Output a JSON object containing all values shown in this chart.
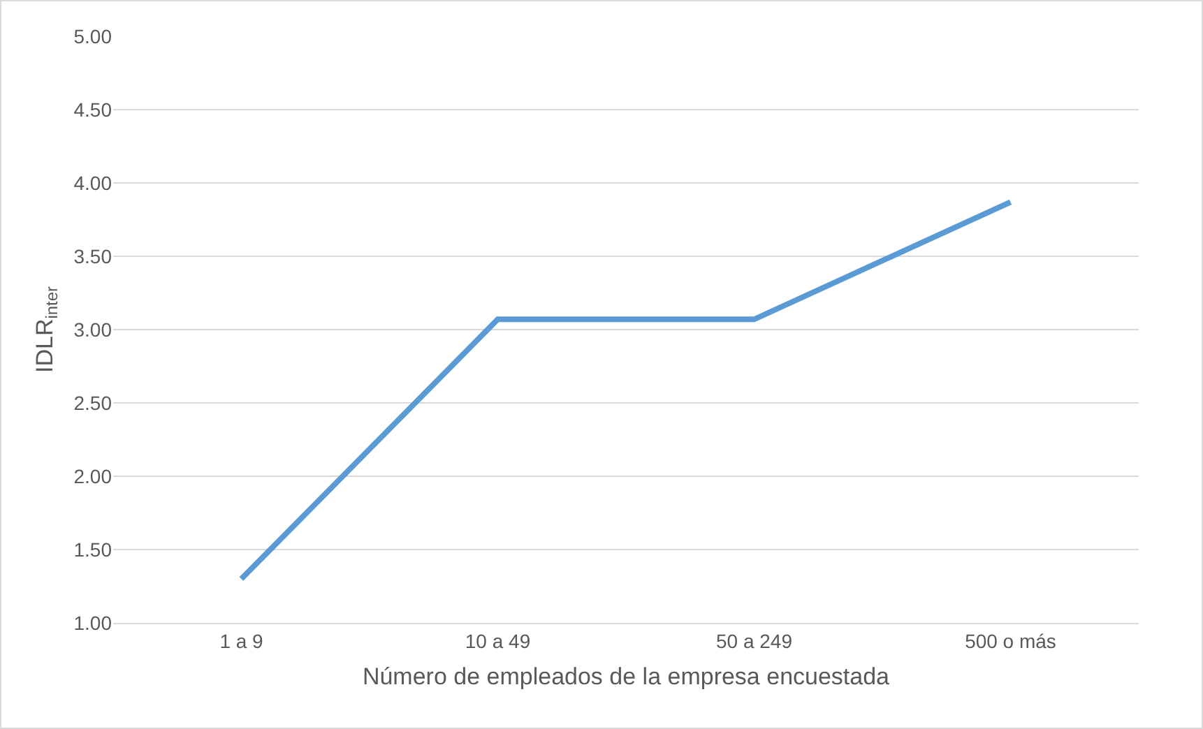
{
  "chart_data": {
    "type": "line",
    "xlabel": "Número de empleados de la empresa encuestada",
    "ylabel": "IDLR$_{inter}$",
    "categories": [
      "1 a 9",
      "10 a 49",
      "50 a 249",
      "500 o más"
    ],
    "series": [
      {
        "color": "#5b9bd5",
        "values": [
          1.3,
          3.07,
          3.07,
          3.87
        ]
      }
    ],
    "ylim": [
      1,
      5
    ],
    "yticks": [
      {
        "value": 1,
        "label": "1.00"
      },
      {
        "value": 1.5,
        "label": "1.50"
      },
      {
        "value": 2,
        "label": "2.00"
      },
      {
        "value": 2.5,
        "label": "2.50"
      },
      {
        "value": 3,
        "label": "3.00"
      },
      {
        "value": 3.5,
        "label": "3.50"
      },
      {
        "value": 4,
        "label": "4.00"
      },
      {
        "value": 4.5,
        "label": "4.50"
      },
      {
        "value": 5,
        "label": "5.00"
      }
    ],
    "grid": "y",
    "marker": "none",
    "line_style": "solid"
  }
}
